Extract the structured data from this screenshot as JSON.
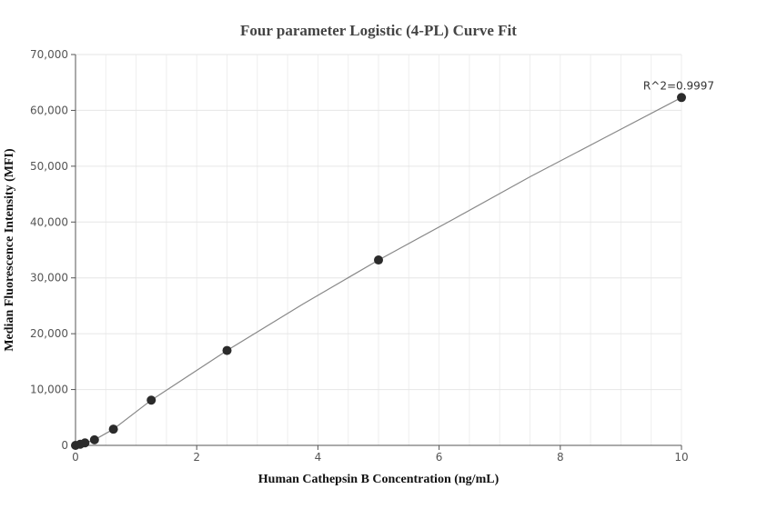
{
  "chart_data": {
    "type": "scatter",
    "title": "Four parameter Logistic (4-PL) Curve Fit",
    "xlabel": "Human Cathepsin B Concentration (ng/mL)",
    "ylabel": "Median Fluorescence Intensity (MFI)",
    "xlim": [
      0,
      10
    ],
    "ylim": [
      0,
      70000
    ],
    "x_ticks": [
      0,
      2,
      4,
      6,
      8,
      10
    ],
    "y_ticks": [
      0,
      10000,
      20000,
      30000,
      40000,
      50000,
      60000,
      70000
    ],
    "x_tick_labels": [
      "0",
      "2",
      "4",
      "6",
      "8",
      "10"
    ],
    "y_tick_labels": [
      "0",
      "10,000",
      "20,000",
      "30,000",
      "40,000",
      "50,000",
      "60,000",
      "70,000"
    ],
    "grid": true,
    "series": [
      {
        "points": [
          {
            "x": 0,
            "y": 0
          },
          {
            "x": 0.078,
            "y": 200
          },
          {
            "x": 0.156,
            "y": 450
          },
          {
            "x": 0.3125,
            "y": 1000
          },
          {
            "x": 0.625,
            "y": 2900
          },
          {
            "x": 1.25,
            "y": 8100
          },
          {
            "x": 2.5,
            "y": 17000
          },
          {
            "x": 5,
            "y": 33200
          },
          {
            "x": 10,
            "y": 62300
          }
        ],
        "marker_color": "#2b2b2b"
      }
    ],
    "fit_curve": {
      "color": "#888888",
      "points": [
        {
          "x": 0,
          "y": 0
        },
        {
          "x": 0.078,
          "y": 200
        },
        {
          "x": 0.156,
          "y": 450
        },
        {
          "x": 0.3125,
          "y": 1000
        },
        {
          "x": 0.625,
          "y": 2900
        },
        {
          "x": 1.25,
          "y": 8100
        },
        {
          "x": 2.5,
          "y": 17000
        },
        {
          "x": 3.75,
          "y": 25300
        },
        {
          "x": 5,
          "y": 33200
        },
        {
          "x": 6.25,
          "y": 40600
        },
        {
          "x": 7.5,
          "y": 48100
        },
        {
          "x": 8.75,
          "y": 55200
        },
        {
          "x": 10,
          "y": 62300
        }
      ]
    },
    "annotation": {
      "text": "R^2=0.9997",
      "anchor": {
        "x": 10,
        "y": 62300
      }
    }
  }
}
